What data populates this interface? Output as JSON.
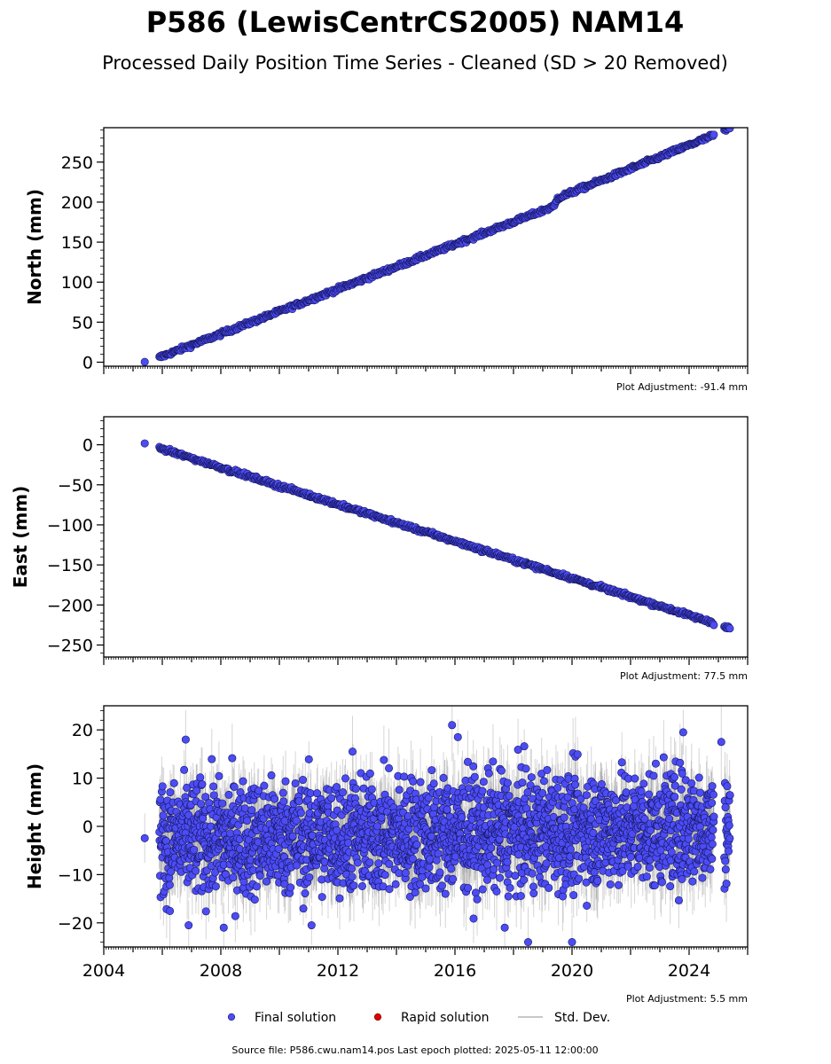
{
  "figure": {
    "title": "P586 (LewisCentrCS2005) NAM14",
    "subtitle": "Processed Daily Position Time Series - Cleaned (SD > 20 Removed)",
    "source_line": "Source file: P586.cwu.nam14.pos  Last epoch plotted: 2025-05-11 12:00:00"
  },
  "legend": {
    "items": [
      {
        "label": "Final solution",
        "color": "#4c4cf5",
        "symbol": "circle"
      },
      {
        "label": "Rapid solution",
        "color": "#dd0000",
        "symbol": "circle"
      },
      {
        "label": "Std. Dev.",
        "color": "#c8c8c8",
        "symbol": "line"
      }
    ]
  },
  "chart_data": [
    {
      "type": "scatter",
      "ylabel": "North (mm)",
      "adjustment": "Plot Adjustment: -91.4 mm",
      "xlim": [
        2004,
        2026
      ],
      "ylim": [
        -5,
        293
      ],
      "yticks": [
        0,
        50,
        100,
        150,
        200,
        250
      ],
      "xticks": [],
      "std_dev": 1.0,
      "series": [
        {
          "trend": [
            [
              2005.4,
              0
            ],
            [
              2005.9,
              6
            ],
            [
              2019.4,
              195
            ],
            [
              2019.5,
              205
            ],
            [
              2024.8,
              283
            ],
            [
              2025.25,
              290
            ],
            [
              2025.4,
              293
            ]
          ],
          "gaps": [
            [
              2005.45,
              2005.85
            ],
            [
              2024.85,
              2025.2
            ]
          ],
          "noise": 1.3,
          "step_days": 10
        }
      ]
    },
    {
      "type": "scatter",
      "ylabel": "East (mm)",
      "adjustment": "Plot Adjustment: 77.5 mm",
      "xlim": [
        2004,
        2026
      ],
      "ylim": [
        -265,
        35
      ],
      "yticks": [
        0,
        -50,
        -100,
        -150,
        -200,
        -250
      ],
      "ytick_labels": [
        "0",
        "−50",
        "−100",
        "−150",
        "−200",
        "−250"
      ],
      "xticks": [],
      "std_dev": 1.0,
      "series": [
        {
          "trend": [
            [
              2005.4,
              1
            ],
            [
              2005.9,
              -4
            ],
            [
              2024.8,
              -222
            ],
            [
              2025.25,
              -227
            ],
            [
              2025.4,
              -229
            ]
          ],
          "gaps": [
            [
              2005.45,
              2005.85
            ],
            [
              2024.85,
              2025.2
            ]
          ],
          "noise": 1.2,
          "step_days": 10
        }
      ]
    },
    {
      "type": "scatter",
      "ylabel": "Height (mm)",
      "adjustment": "Plot Adjustment: 5.5 mm",
      "xlim": [
        2004,
        2026
      ],
      "ylim": [
        -25,
        25
      ],
      "yticks": [
        20,
        10,
        0,
        -10,
        -20
      ],
      "ytick_labels": [
        "20",
        "10",
        "0",
        "−10",
        "−20"
      ],
      "xticks": [
        2004,
        2008,
        2012,
        2016,
        2020,
        2024
      ],
      "xtick_labels": [
        "2004",
        "2008",
        "2012",
        "2016",
        "2020",
        "2024"
      ],
      "std_dev": 5.5,
      "series": [
        {
          "trend": [
            [
              2005.4,
              -1
            ],
            [
              2005.9,
              -3
            ],
            [
              2024.8,
              0
            ],
            [
              2025.4,
              0
            ]
          ],
          "gaps": [
            [
              2005.45,
              2005.85
            ],
            [
              2024.85,
              2025.2
            ]
          ],
          "noise": 6.0,
          "step_days": 3
        }
      ],
      "outliers": [
        [
          2006.8,
          18
        ],
        [
          2015.9,
          21
        ],
        [
          2016.1,
          18.5
        ],
        [
          2012.5,
          15.5
        ],
        [
          2023.8,
          19.5
        ],
        [
          2025.1,
          17.5
        ],
        [
          2018.5,
          -24
        ],
        [
          2020.0,
          -24
        ],
        [
          2008.1,
          -21
        ],
        [
          2006.9,
          -20.5
        ],
        [
          2011.1,
          -20.5
        ],
        [
          2017.7,
          -21
        ]
      ]
    }
  ]
}
